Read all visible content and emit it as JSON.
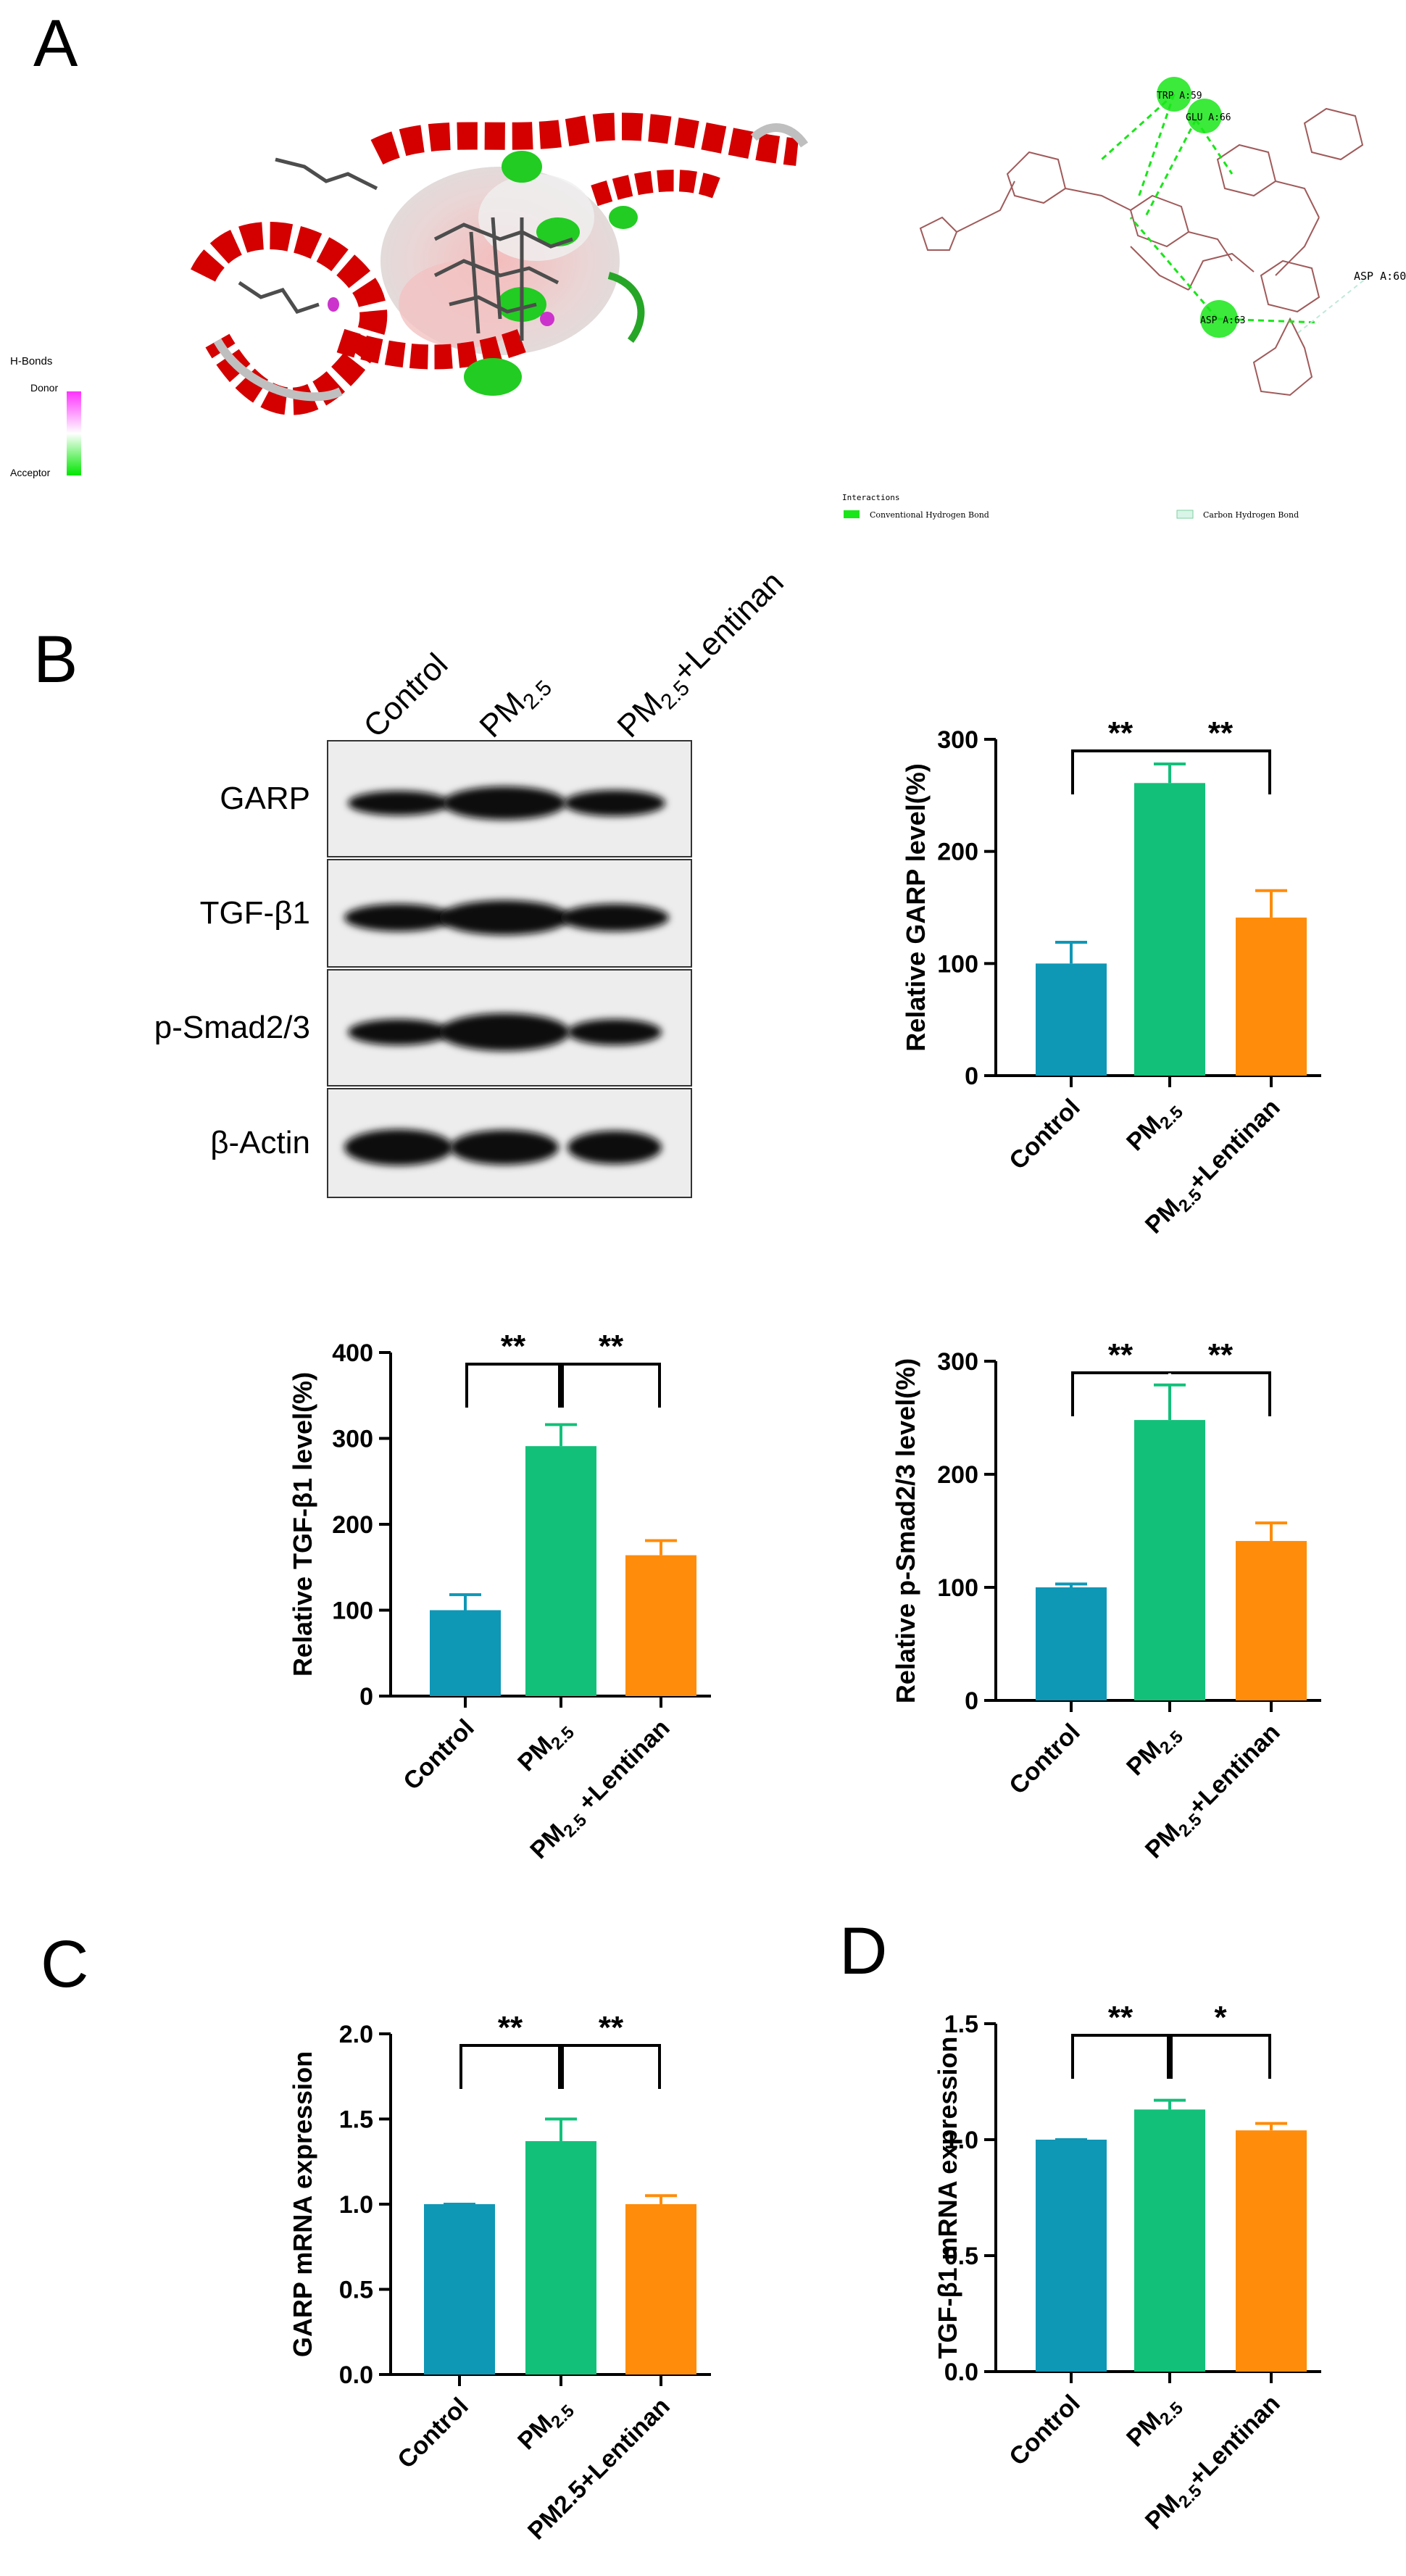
{
  "panel_letters": {
    "A": "A",
    "B": "B",
    "C": "C",
    "D": "D"
  },
  "panelA": {
    "hbonds_legend": {
      "title": "H-Bonds",
      "donor": "Donor",
      "acceptor": "Acceptor"
    },
    "residues": [
      "TRP A:59",
      "GLU A:66",
      "ASP A:63",
      "ASP A:60"
    ],
    "interactions_legend": {
      "title": "Interactions",
      "items": [
        {
          "label": "Conventional Hydrogen Bond",
          "color": "#19e619"
        },
        {
          "label": "Carbon Hydrogen Bond",
          "color": "#d8f5e8"
        }
      ]
    },
    "colors": {
      "helix": "#d40000",
      "loop": "#bfbfbf",
      "ligand": "#555555",
      "surface": "#e8c7c7"
    }
  },
  "blot": {
    "lanes": [
      "Control",
      "PM2.5",
      "PM2.5+Lentinan"
    ],
    "proteins": [
      "GARP",
      "TGF-β1",
      "p-Smad2/3",
      "β-Actin"
    ]
  },
  "chart_data": [
    {
      "id": "garp_protein",
      "type": "bar",
      "categories": [
        "Control",
        "PM2.5",
        "PM2.5+Lentinan"
      ],
      "values": [
        100,
        261,
        141
      ],
      "errors": [
        19,
        17,
        24
      ],
      "colors": [
        "#0f97b6",
        "#12c07a",
        "#ff8c0a"
      ],
      "ylabel": "Relative GARP level(%)",
      "ylim": [
        0,
        300
      ],
      "yticks": [
        "0",
        "100",
        "200",
        "300"
      ],
      "significance": [
        {
          "from": 0,
          "to": 1,
          "label": "**"
        },
        {
          "from": 1,
          "to": 2,
          "label": "**"
        }
      ]
    },
    {
      "id": "tgfb1_protein",
      "type": "bar",
      "categories": [
        "Control",
        "PM2.5",
        "PM2.5 +Lentinan"
      ],
      "values": [
        100,
        291,
        164
      ],
      "errors": [
        18,
        25,
        17
      ],
      "colors": [
        "#0f97b6",
        "#12c07a",
        "#ff8c0a"
      ],
      "ylabel": "Relative TGF-β1 level(%)",
      "ylim": [
        0,
        400
      ],
      "yticks": [
        "0",
        "100",
        "200",
        "300",
        "400"
      ],
      "significance": [
        {
          "from": 0,
          "to": 1,
          "label": "**"
        },
        {
          "from": 1,
          "to": 2,
          "label": "**"
        }
      ]
    },
    {
      "id": "psmad_protein",
      "type": "bar",
      "categories": [
        "Control",
        "PM2.5",
        "PM2.5+Lentinan"
      ],
      "values": [
        100,
        248,
        141
      ],
      "errors": [
        3,
        31,
        16
      ],
      "colors": [
        "#0f97b6",
        "#12c07a",
        "#ff8c0a"
      ],
      "ylabel": "Relative p-Smad2/3 level(%)",
      "ylim": [
        0,
        300
      ],
      "yticks": [
        "0",
        "100",
        "200",
        "300"
      ],
      "significance": [
        {
          "from": 0,
          "to": 1,
          "label": "**"
        },
        {
          "from": 1,
          "to": 2,
          "label": "**"
        }
      ]
    },
    {
      "id": "garp_mrna",
      "type": "bar",
      "categories": [
        "Control",
        "PM2.5",
        "PM2.5+Lentinan"
      ],
      "values": [
        1.0,
        1.37,
        1.0
      ],
      "errors": [
        0,
        0.13,
        0.05
      ],
      "colors": [
        "#0f97b6",
        "#12c07a",
        "#ff8c0a"
      ],
      "ylabel": "GARP mRNA expression",
      "ylim": [
        0,
        2.0
      ],
      "yticks": [
        "0.0",
        "0.5",
        "1.0",
        "1.5",
        "2.0"
      ],
      "significance": [
        {
          "from": 0,
          "to": 1,
          "label": "**"
        },
        {
          "from": 1,
          "to": 2,
          "label": "**"
        }
      ]
    },
    {
      "id": "tgfb1_mrna",
      "type": "bar",
      "categories": [
        "Control",
        "PM2.5",
        "PM2.5+Lentinan"
      ],
      "values": [
        1.0,
        1.13,
        1.04
      ],
      "errors": [
        0,
        0.04,
        0.03
      ],
      "colors": [
        "#0f97b6",
        "#12c07a",
        "#ff8c0a"
      ],
      "ylabel": "TGF-β1 mRNA expression",
      "ylim": [
        0,
        1.5
      ],
      "yticks": [
        "0.0",
        "0.5",
        "1.0",
        "1.5"
      ],
      "significance": [
        {
          "from": 0,
          "to": 1,
          "label": "**"
        },
        {
          "from": 1,
          "to": 2,
          "label": "*"
        }
      ]
    }
  ]
}
